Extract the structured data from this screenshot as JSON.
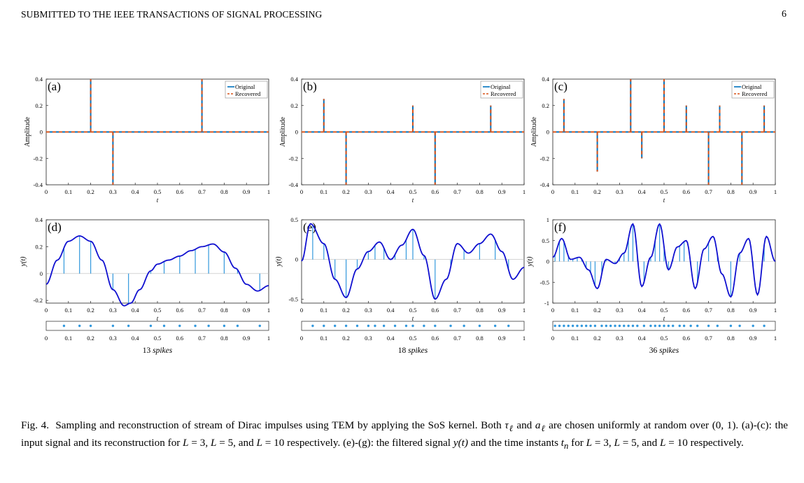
{
  "header": {
    "title": "SUBMITTED TO THE IEEE TRANSACTIONS OF SIGNAL PROCESSING",
    "page_number": "6"
  },
  "colors": {
    "original": "#0072bd",
    "recovered": "#d95319",
    "filtered": "#1010d0",
    "samples": "#3399dd"
  },
  "figure_labels": {
    "amplitude_ylabel": "Amplitude",
    "yt_ylabel": "y(t)",
    "t_xlabel": "t",
    "legend_original": "Original",
    "legend_recovered": "Recovered"
  },
  "chart_data": [
    {
      "id": "a",
      "label": "(a)",
      "type": "stem",
      "xlim": [
        0,
        1
      ],
      "ylim": [
        -0.4,
        0.4
      ],
      "xticks": [
        "0",
        "0.1",
        "0.2",
        "0.3",
        "0.4",
        "0.5",
        "0.6",
        "0.7",
        "0.8",
        "0.9",
        "1"
      ],
      "yticks": [
        "-0.4",
        "-0.2",
        "0",
        "0.2",
        "0.4"
      ],
      "legend": [
        "Original",
        "Recovered"
      ],
      "series": [
        {
          "name": "Original",
          "x": [
            0.2,
            0.3,
            0.7
          ],
          "y": [
            0.4,
            -0.4,
            0.4
          ]
        },
        {
          "name": "Recovered",
          "x": [
            0.2,
            0.3,
            0.7
          ],
          "y": [
            0.4,
            -0.4,
            0.4
          ]
        }
      ]
    },
    {
      "id": "b",
      "label": "(b)",
      "type": "stem",
      "xlim": [
        0,
        1
      ],
      "ylim": [
        -0.4,
        0.4
      ],
      "xticks": [
        "0",
        "0.1",
        "0.2",
        "0.3",
        "0.4",
        "0.5",
        "0.6",
        "0.7",
        "0.8",
        "0.9",
        "1"
      ],
      "yticks": [
        "-0.4",
        "-0.2",
        "0",
        "0.2",
        "0.4"
      ],
      "legend": [
        "Original",
        "Recovered"
      ],
      "series": [
        {
          "name": "Original",
          "x": [
            0.1,
            0.2,
            0.5,
            0.6,
            0.85
          ],
          "y": [
            0.25,
            -0.4,
            0.2,
            -0.4,
            0.2
          ]
        },
        {
          "name": "Recovered",
          "x": [
            0.1,
            0.2,
            0.5,
            0.6,
            0.85
          ],
          "y": [
            0.25,
            -0.4,
            0.2,
            -0.4,
            0.2
          ]
        }
      ]
    },
    {
      "id": "c",
      "label": "(c)",
      "type": "stem",
      "xlim": [
        0,
        1
      ],
      "ylim": [
        -0.4,
        0.4
      ],
      "xticks": [
        "0",
        "0.1",
        "0.2",
        "0.3",
        "0.4",
        "0.5",
        "0.6",
        "0.7",
        "0.8",
        "0.9",
        "1"
      ],
      "yticks": [
        "-0.4",
        "-0.2",
        "0",
        "0.2",
        "0.4"
      ],
      "legend": [
        "Original",
        "Recovered"
      ],
      "series": [
        {
          "name": "Original",
          "x": [
            0.05,
            0.2,
            0.35,
            0.4,
            0.5,
            0.6,
            0.7,
            0.75,
            0.85,
            0.95
          ],
          "y": [
            0.25,
            -0.3,
            0.4,
            -0.2,
            0.4,
            0.2,
            -0.4,
            0.2,
            -0.4,
            0.2
          ]
        },
        {
          "name": "Recovered",
          "x": [
            0.05,
            0.2,
            0.35,
            0.4,
            0.5,
            0.6,
            0.7,
            0.75,
            0.85,
            0.95
          ],
          "y": [
            0.25,
            -0.3,
            0.4,
            -0.2,
            0.4,
            0.2,
            -0.4,
            0.2,
            -0.4,
            0.2
          ]
        }
      ]
    },
    {
      "id": "d",
      "label": "(d)",
      "type": "line",
      "xlim": [
        0,
        1
      ],
      "ylim": [
        -0.22,
        0.4
      ],
      "xticks": [
        "0",
        "0.1",
        "0.2",
        "0.3",
        "0.4",
        "0.5",
        "0.6",
        "0.7",
        "0.8",
        "0.9",
        "1"
      ],
      "yticks": [
        "-0.2",
        "0",
        "0.2",
        "0.4"
      ],
      "ytick_values": [
        -0.2,
        0,
        0.2,
        0.4
      ],
      "filtered": {
        "x": [
          0,
          0.05,
          0.1,
          0.15,
          0.2,
          0.25,
          0.3,
          0.35,
          0.38,
          0.42,
          0.47,
          0.5,
          0.55,
          0.6,
          0.65,
          0.7,
          0.75,
          0.8,
          0.85,
          0.9,
          0.95,
          1.0
        ],
        "y": [
          -0.08,
          0.1,
          0.24,
          0.28,
          0.24,
          0.1,
          -0.12,
          -0.24,
          -0.22,
          -0.12,
          0.02,
          0.07,
          0.1,
          0.13,
          0.17,
          0.2,
          0.22,
          0.16,
          0.04,
          -0.08,
          -0.13,
          -0.09
        ]
      },
      "time_instants": [
        0.08,
        0.15,
        0.2,
        0.3,
        0.37,
        0.47,
        0.53,
        0.6,
        0.67,
        0.73,
        0.8,
        0.86,
        0.96
      ],
      "spike_caption": "13",
      "spike_word": "spikes"
    },
    {
      "id": "e",
      "label": "(e)",
      "type": "line",
      "xlim": [
        0,
        1
      ],
      "ylim": [
        -0.55,
        0.5
      ],
      "xticks": [
        "0",
        "0.1",
        "0.2",
        "0.3",
        "0.4",
        "0.5",
        "0.6",
        "0.7",
        "0.8",
        "0.9",
        "1"
      ],
      "yticks": [
        "-0.5",
        "0",
        "0.5"
      ],
      "ytick_values": [
        -0.5,
        0,
        0.5
      ],
      "filtered": {
        "x": [
          0,
          0.04,
          0.1,
          0.15,
          0.2,
          0.25,
          0.3,
          0.35,
          0.4,
          0.45,
          0.5,
          0.55,
          0.6,
          0.65,
          0.7,
          0.75,
          0.8,
          0.85,
          0.9,
          0.95,
          1.0
        ],
        "y": [
          -0.02,
          0.45,
          0.2,
          -0.25,
          -0.48,
          -0.12,
          0.1,
          0.22,
          0.0,
          0.18,
          0.38,
          0.05,
          -0.5,
          -0.25,
          0.2,
          0.08,
          0.2,
          0.32,
          0.1,
          -0.25,
          -0.1
        ]
      },
      "time_instants": [
        0.05,
        0.1,
        0.15,
        0.2,
        0.25,
        0.3,
        0.33,
        0.37,
        0.42,
        0.47,
        0.5,
        0.55,
        0.6,
        0.67,
        0.73,
        0.8,
        0.87,
        0.93
      ],
      "spike_caption": "18",
      "spike_word": "spikes"
    },
    {
      "id": "f",
      "label": "(f)",
      "type": "line",
      "xlim": [
        0,
        1
      ],
      "ylim": [
        -1,
        1
      ],
      "xticks": [
        "0",
        "0.1",
        "0.2",
        "0.3",
        "0.4",
        "0.5",
        "0.6",
        "0.7",
        "0.8",
        "0.9",
        "1"
      ],
      "yticks": [
        "-1",
        "-0.5",
        "0",
        "0.5",
        "1"
      ],
      "ytick_values": [
        -1,
        -0.5,
        0,
        0.5,
        1
      ],
      "filtered": {
        "x": [
          0,
          0.04,
          0.08,
          0.12,
          0.16,
          0.2,
          0.24,
          0.28,
          0.32,
          0.36,
          0.4,
          0.44,
          0.48,
          0.52,
          0.56,
          0.6,
          0.64,
          0.68,
          0.72,
          0.76,
          0.8,
          0.84,
          0.88,
          0.92,
          0.96,
          1.0
        ],
        "y": [
          0.1,
          0.55,
          0.05,
          0.1,
          -0.2,
          -0.65,
          0.05,
          -0.05,
          0.2,
          0.9,
          -0.6,
          0.1,
          0.9,
          -0.2,
          0.35,
          0.5,
          -0.65,
          0.3,
          0.6,
          -0.3,
          -0.85,
          0.2,
          0.55,
          -0.8,
          0.6,
          0.0
        ]
      },
      "time_instants": [
        0.01,
        0.03,
        0.05,
        0.07,
        0.09,
        0.11,
        0.13,
        0.15,
        0.17,
        0.19,
        0.22,
        0.24,
        0.26,
        0.28,
        0.3,
        0.32,
        0.34,
        0.36,
        0.38,
        0.41,
        0.44,
        0.46,
        0.48,
        0.5,
        0.52,
        0.54,
        0.57,
        0.59,
        0.62,
        0.65,
        0.7,
        0.74,
        0.8,
        0.84,
        0.9,
        0.95
      ],
      "spike_caption": "36",
      "spike_word": "spikes"
    }
  ],
  "caption": {
    "prefix": "Fig. 4.",
    "text_1": "Sampling and reconstruction of stream of Dirac impulses using TEM by applying the SoS kernel. Both",
    "tau": "τ",
    "ell": "ℓ",
    "and": "and",
    "a": "a",
    "text_2": "are chosen uniformly at random over",
    "interval": "(0, 1)",
    "text_3": ". (a)-(c): the input signal and its reconstruction for",
    "L": "L",
    "eq3": "= 3,",
    "eq5": "= 5,",
    "and2": "and",
    "eq10": "= 10",
    "text_4": "respectively. (e)-(g): the filtered signal",
    "yt": "y(t)",
    "text_5": "and the time instants",
    "t": "t",
    "n": "n",
    "text_6": "for",
    "eq3b": "= 3,",
    "eq5b": "= 5,",
    "and3": "and",
    "eq10b": "= 10",
    "text_7": "respectively."
  }
}
